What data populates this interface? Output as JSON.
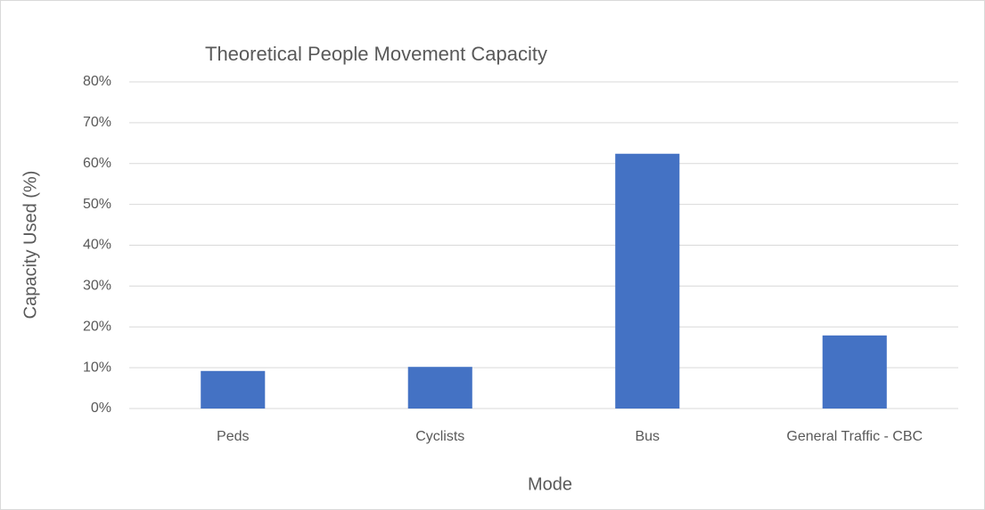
{
  "chart_data": {
    "type": "bar",
    "title": "Theoretical People Movement Capacity",
    "x_label": "Mode",
    "y_label": "Capacity Used (%)",
    "categories": [
      "Peds",
      "Cyclists",
      "Bus",
      "General Traffic - CBC"
    ],
    "values": [
      9.2,
      10.2,
      62.4,
      17.9
    ],
    "color": "#4472c4",
    "ylim": [
      0,
      80
    ],
    "yticks": [
      {
        "value": 0,
        "label": "0%"
      },
      {
        "value": 10,
        "label": "10%"
      },
      {
        "value": 20,
        "label": "20%"
      },
      {
        "value": 30,
        "label": "30%"
      },
      {
        "value": 40,
        "label": "40%"
      },
      {
        "value": 50,
        "label": "50%"
      },
      {
        "value": 60,
        "label": "60%"
      },
      {
        "value": 70,
        "label": "70%"
      },
      {
        "value": 80,
        "label": "80%"
      }
    ],
    "grid": true
  }
}
